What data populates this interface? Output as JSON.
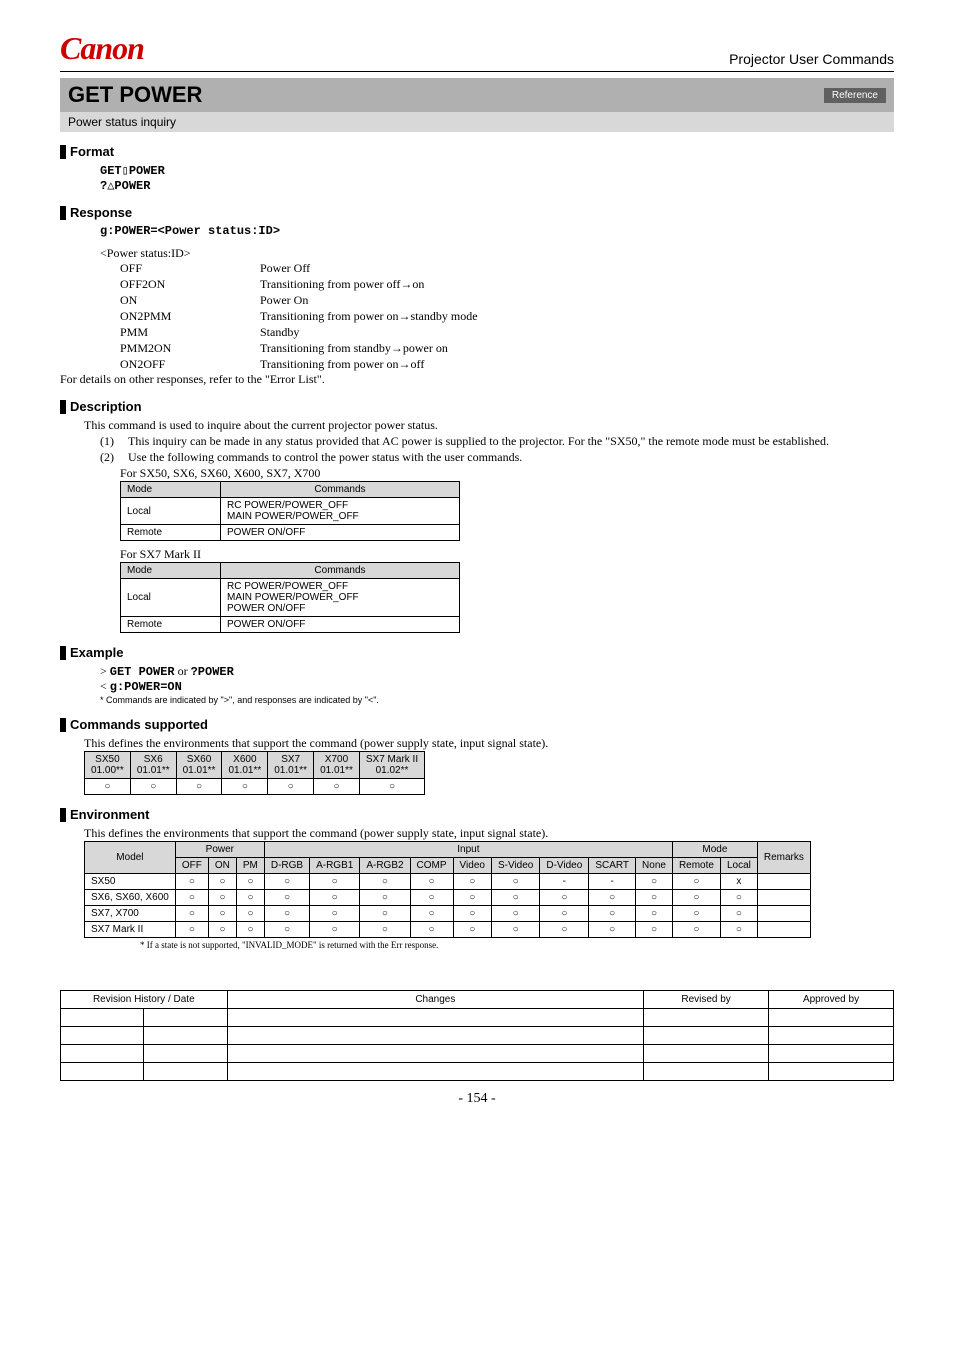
{
  "header": {
    "brand": "Canon",
    "doc_title": "Projector User Commands"
  },
  "command": {
    "name": "GET POWER",
    "ref": "Reference",
    "subtitle": "Power status inquiry"
  },
  "format": {
    "heading": "Format",
    "lines": [
      "GET▯POWER",
      "?△POWER"
    ]
  },
  "response": {
    "heading": "Response",
    "line": "g:POWER=<Power status:ID>",
    "list_title": "<Power status:ID>",
    "items": [
      {
        "id": "OFF",
        "desc": "Power Off"
      },
      {
        "id": "OFF2ON",
        "desc": "Transitioning from power off→on"
      },
      {
        "id": "ON",
        "desc": "Power On"
      },
      {
        "id": "ON2PMM",
        "desc": "Transitioning from power on→standby mode"
      },
      {
        "id": "PMM",
        "desc": "Standby"
      },
      {
        "id": "PMM2ON",
        "desc": "Transitioning from standby→power on"
      },
      {
        "id": "ON2OFF",
        "desc": "Transitioning from power on→off"
      }
    ],
    "note": "For details on other responses, refer to the \"Error List\"."
  },
  "description": {
    "heading": "Description",
    "intro": "This command is used to inquire about the current projector power status.",
    "points": [
      "This inquiry can be made in any status provided that AC power is supplied to the projector. For the \"SX50,\" the remote mode must be established.",
      "Use the following commands to control the power status with the user commands."
    ],
    "table1_caption": "For SX50, SX6, SX60, X600, SX7, X700",
    "table_headers": [
      "Mode",
      "Commands"
    ],
    "table1_rows": [
      [
        "Local",
        "RC POWER/POWER_OFF\nMAIN POWER/POWER_OFF"
      ],
      [
        "Remote",
        "POWER ON/OFF"
      ]
    ],
    "table2_caption": "For SX7 Mark II",
    "table2_rows": [
      [
        "Local",
        "RC POWER/POWER_OFF\nMAIN POWER/POWER_OFF\nPOWER ON/OFF"
      ],
      [
        "Remote",
        "POWER ON/OFF"
      ]
    ]
  },
  "example": {
    "heading": "Example",
    "line1_pre": "> ",
    "line1_a": "GET POWER",
    "line1_mid": " or ",
    "line1_b": "?POWER",
    "line2_pre": "< ",
    "line2": "g:POWER=ON",
    "note": "* Commands are indicated by \">\", and responses are indicated by \"<\"."
  },
  "supported": {
    "heading": "Commands supported",
    "desc": "This defines the environments that support the command (power supply state, input signal state).",
    "cols": [
      {
        "m": "SX50",
        "v": "01.00**"
      },
      {
        "m": "SX6",
        "v": "01.01**"
      },
      {
        "m": "SX60",
        "v": "01.01**"
      },
      {
        "m": "X600",
        "v": "01.01**"
      },
      {
        "m": "SX7",
        "v": "01.01**"
      },
      {
        "m": "X700",
        "v": "01.01**"
      },
      {
        "m": "SX7 Mark II",
        "v": "01.02**"
      }
    ],
    "row": [
      "○",
      "○",
      "○",
      "○",
      "○",
      "○",
      "○"
    ]
  },
  "environment": {
    "heading": "Environment",
    "desc": "This defines the environments that support the command (power supply state, input signal state).",
    "group_headers": {
      "model": "Model",
      "power": "Power",
      "input": "Input",
      "mode": "Mode",
      "remarks": "Remarks"
    },
    "power_cols": [
      "OFF",
      "ON",
      "PM"
    ],
    "input_cols": [
      "D-RGB",
      "A-RGB1",
      "A-RGB2",
      "COMP",
      "Video",
      "S-Video",
      "D-Video",
      "SCART",
      "None"
    ],
    "mode_cols": [
      "Remote",
      "Local"
    ],
    "rows": [
      {
        "model": "SX50",
        "cells": [
          "○",
          "○",
          "○",
          "○",
          "○",
          "○",
          "○",
          "○",
          "○",
          "-",
          "-",
          "○",
          "○",
          "x",
          ""
        ]
      },
      {
        "model": "SX6, SX60, X600",
        "cells": [
          "○",
          "○",
          "○",
          "○",
          "○",
          "○",
          "○",
          "○",
          "○",
          "○",
          "○",
          "○",
          "○",
          "○",
          ""
        ]
      },
      {
        "model": "SX7, X700",
        "cells": [
          "○",
          "○",
          "○",
          "○",
          "○",
          "○",
          "○",
          "○",
          "○",
          "○",
          "○",
          "○",
          "○",
          "○",
          ""
        ]
      },
      {
        "model": "SX7 Mark II",
        "cells": [
          "○",
          "○",
          "○",
          "○",
          "○",
          "○",
          "○",
          "○",
          "○",
          "○",
          "○",
          "○",
          "○",
          "○",
          ""
        ]
      }
    ],
    "footnote": "*  If a state is not supported, \"INVALID_MODE\" is returned with the Err response."
  },
  "revision": {
    "headers": [
      "Revision History / Date",
      "Changes",
      "Revised by",
      "Approved by"
    ],
    "blank_rows": 4
  },
  "page_number": "- 154 -",
  "colors": {
    "brand": "#cc0000",
    "bar": "#b0b0b0",
    "subbar": "#d8d8d8",
    "badge": "#606060"
  }
}
